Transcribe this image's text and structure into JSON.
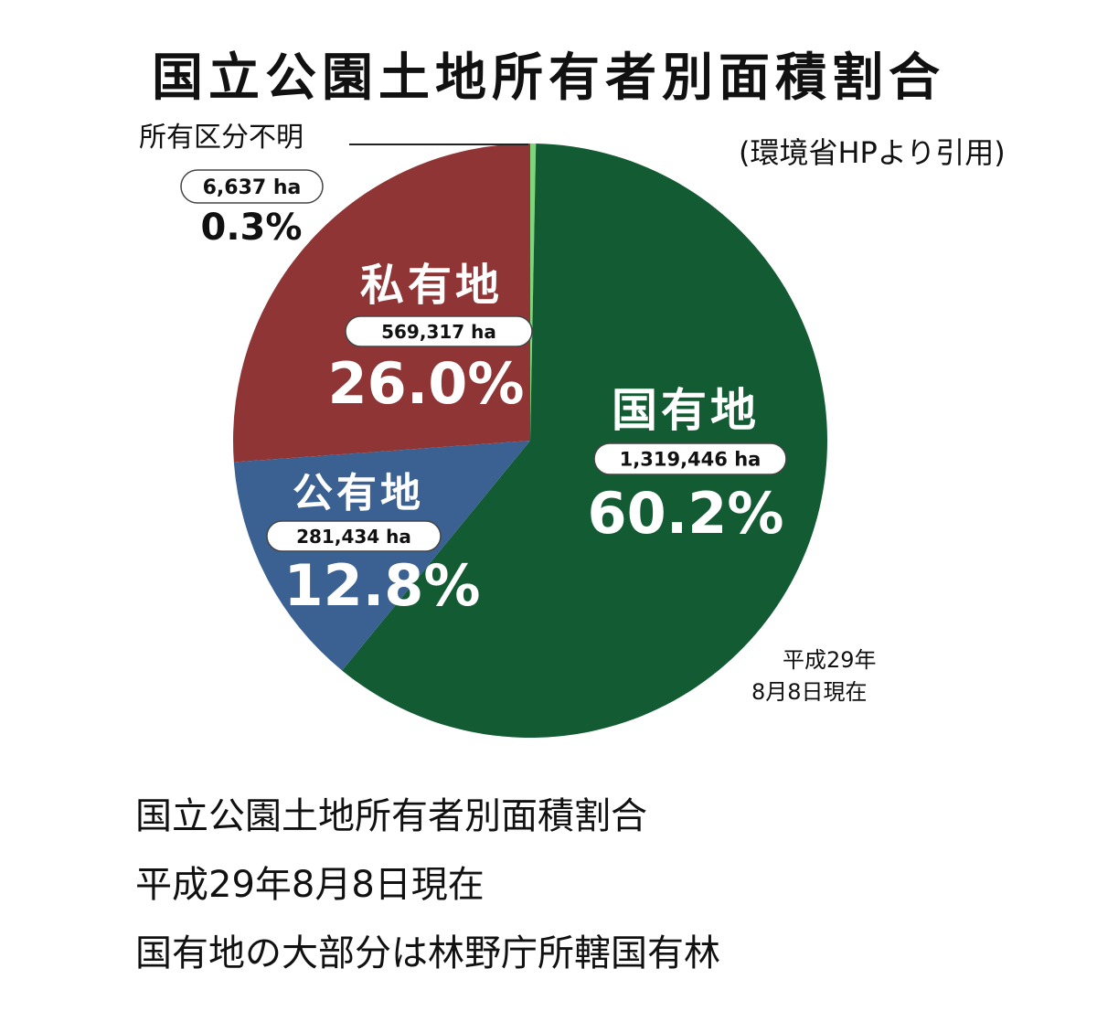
{
  "title": "国立公園土地所有者別面積割合",
  "source": "(環境省HPより引用)",
  "date_note": [
    "平成29年",
    "8月8日現在"
  ],
  "captions": [
    "国立公園土地所有者別面積割合",
    "平成29年8月8日現在",
    "国有地の大部分は林野庁所轄国有林"
  ],
  "chart_data": {
    "type": "pie",
    "title": "国立公園土地所有者別面積割合",
    "slices": [
      {
        "label": "所有区分不明",
        "area": "6,637 ha",
        "value": 6637,
        "percent_label": "0.3%",
        "percent": 0.3,
        "color": "#7ed67a"
      },
      {
        "label": "国有地",
        "area": "1,319,446 ha",
        "value": 1319446,
        "percent_label": "60.2%",
        "percent": 60.2,
        "color": "#135c33"
      },
      {
        "label": "公有地",
        "area": "281,434 ha",
        "value": 281434,
        "percent_label": "12.8%",
        "percent": 12.8,
        "color": "#3a6191"
      },
      {
        "label": "私有地",
        "area": "569,317 ha",
        "value": 569317,
        "percent_label": "26.0%",
        "percent": 26.0,
        "color": "#8f3535"
      }
    ]
  }
}
